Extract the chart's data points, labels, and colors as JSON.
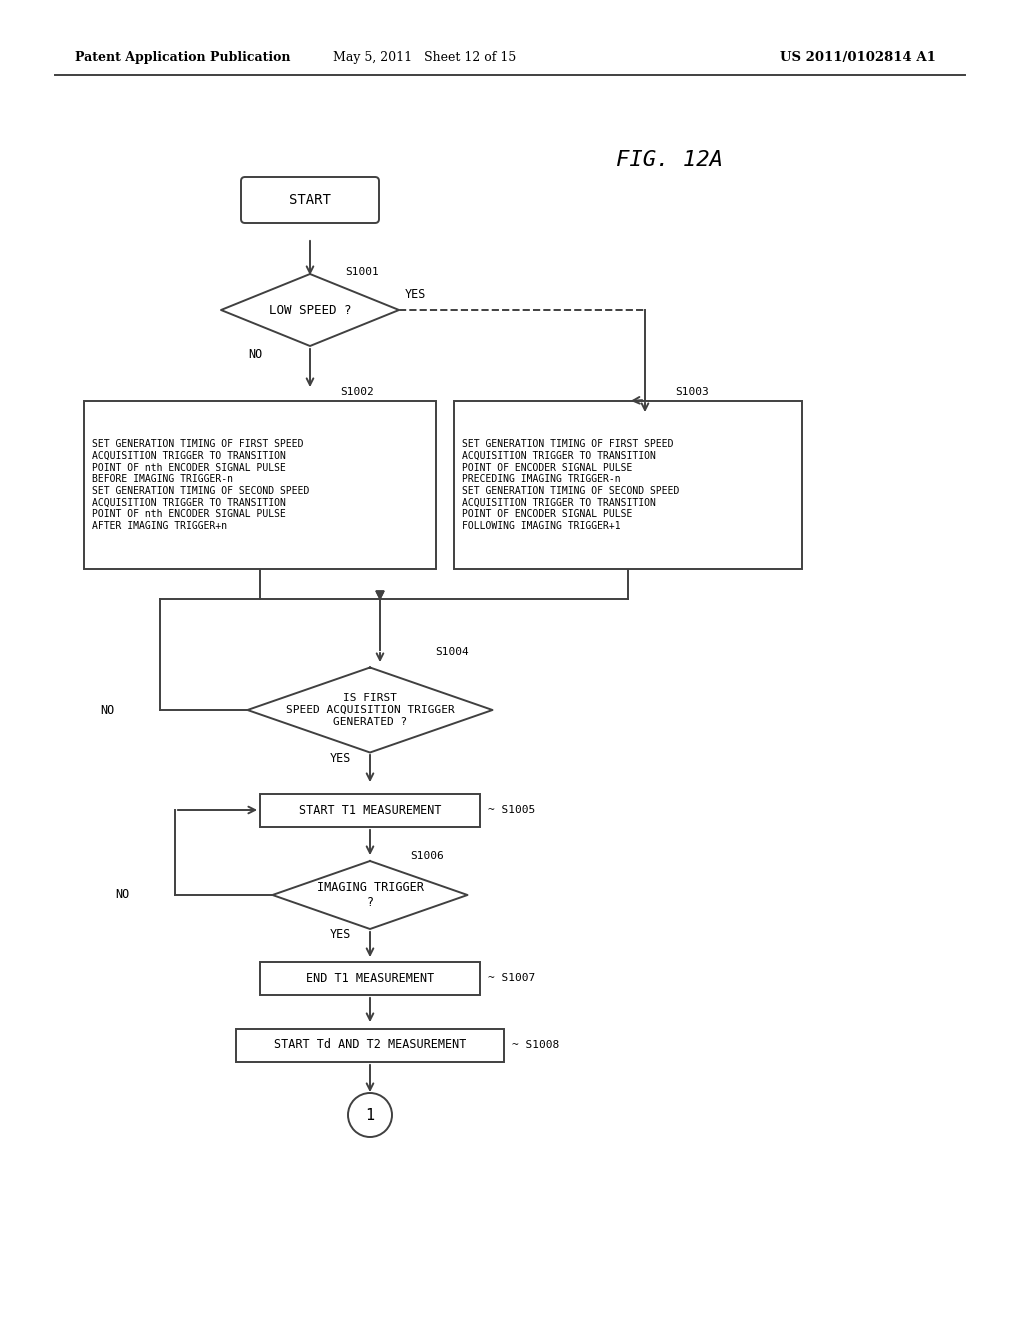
{
  "header_left": "Patent Application Publication",
  "header_mid": "May 5, 2011   Sheet 12 of 15",
  "header_right": "US 2011/0102814 A1",
  "fig_label": "FIG. 12A",
  "background": "#ffffff",
  "line_color": "#404040",
  "text_color": "#000000",
  "s1002_text": "SET GENERATION TIMING OF FIRST SPEED\nACQUISITION TRIGGER TO TRANSITION\nPOINT OF nth ENCODER SIGNAL PULSE\nBEFORE IMAGING TRIGGER-n\nSET GENERATION TIMING OF SECOND SPEED\nACQUISITION TRIGGER TO TRANSITION\nPOINT OF nth ENCODER SIGNAL PULSE\nAFTER IMAGING TRIGGER+n",
  "s1003_text": "SET GENERATION TIMING OF FIRST SPEED\nACQUISITION TRIGGER TO TRANSITION\nPOINT OF ENCODER SIGNAL PULSE\nPRECEDING IMAGING TRIGGER-n\nSET GENERATION TIMING OF SECOND SPEED\nACQUISITION TRIGGER TO TRANSITION\nPOINT OF ENCODER SIGNAL PULSE\nFOLLOWING IMAGING TRIGGER+1"
}
